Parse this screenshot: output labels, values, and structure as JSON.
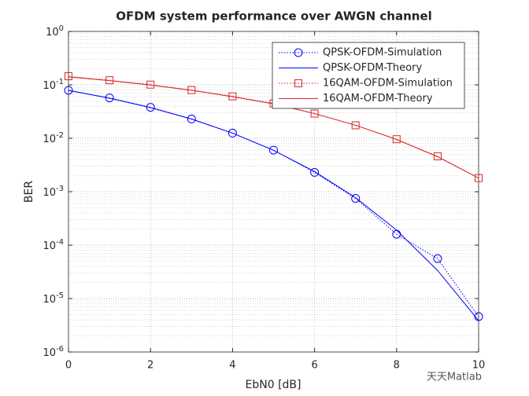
{
  "chart_data": {
    "type": "line",
    "title": "OFDM system performance over AWGN channel",
    "xlabel": "EbN0 [dB]",
    "ylabel": "BER",
    "x": [
      0,
      1,
      2,
      3,
      4,
      5,
      6,
      7,
      8,
      9,
      10
    ],
    "series": [
      {
        "name": "QPSK-OFDM-Simulation",
        "color": "#0000ff",
        "linestyle": "dotted",
        "marker": "circle",
        "values": [
          0.079,
          0.057,
          0.038,
          0.023,
          0.0125,
          0.006,
          0.0023,
          0.00075,
          0.00016,
          5.6e-05,
          4.6e-06
        ]
      },
      {
        "name": "QPSK-OFDM-Theory",
        "color": "#0000ff",
        "linestyle": "solid",
        "marker": "none",
        "values": [
          0.0786,
          0.0563,
          0.0375,
          0.0229,
          0.0125,
          0.00595,
          0.00239,
          0.000773,
          0.000191,
          3.36e-05,
          3.87e-06
        ]
      },
      {
        "name": "16QAM-OFDM-Simulation",
        "color": "#d62728",
        "linestyle": "dotted",
        "marker": "square",
        "values": [
          0.145,
          0.122,
          0.101,
          0.08,
          0.061,
          0.045,
          0.029,
          0.0175,
          0.0096,
          0.0046,
          0.0018
        ]
      },
      {
        "name": "16QAM-OFDM-Theory",
        "color": "#d62728",
        "linestyle": "solid",
        "marker": "none",
        "values": [
          0.141,
          0.12,
          0.099,
          0.079,
          0.06,
          0.044,
          0.029,
          0.0176,
          0.0095,
          0.0045,
          0.0018
        ]
      }
    ],
    "xlim": [
      0,
      10
    ],
    "xticks": [
      0,
      2,
      4,
      6,
      8,
      10
    ],
    "ylim": [
      1e-06,
      1
    ],
    "yscale": "log",
    "yticks": [
      {
        "value": 1e-06,
        "label": "10^-6"
      },
      {
        "value": 1e-05,
        "label": "10^-5"
      },
      {
        "value": 0.0001,
        "label": "10^-4"
      },
      {
        "value": 0.001,
        "label": "10^-3"
      },
      {
        "value": 0.01,
        "label": "10^-2"
      },
      {
        "value": 0.1,
        "label": "10^-1"
      },
      {
        "value": 1,
        "label": "10^0"
      }
    ],
    "grid": true,
    "minor_grid": true,
    "legend": "upper right",
    "watermark": "天天Matlab"
  }
}
